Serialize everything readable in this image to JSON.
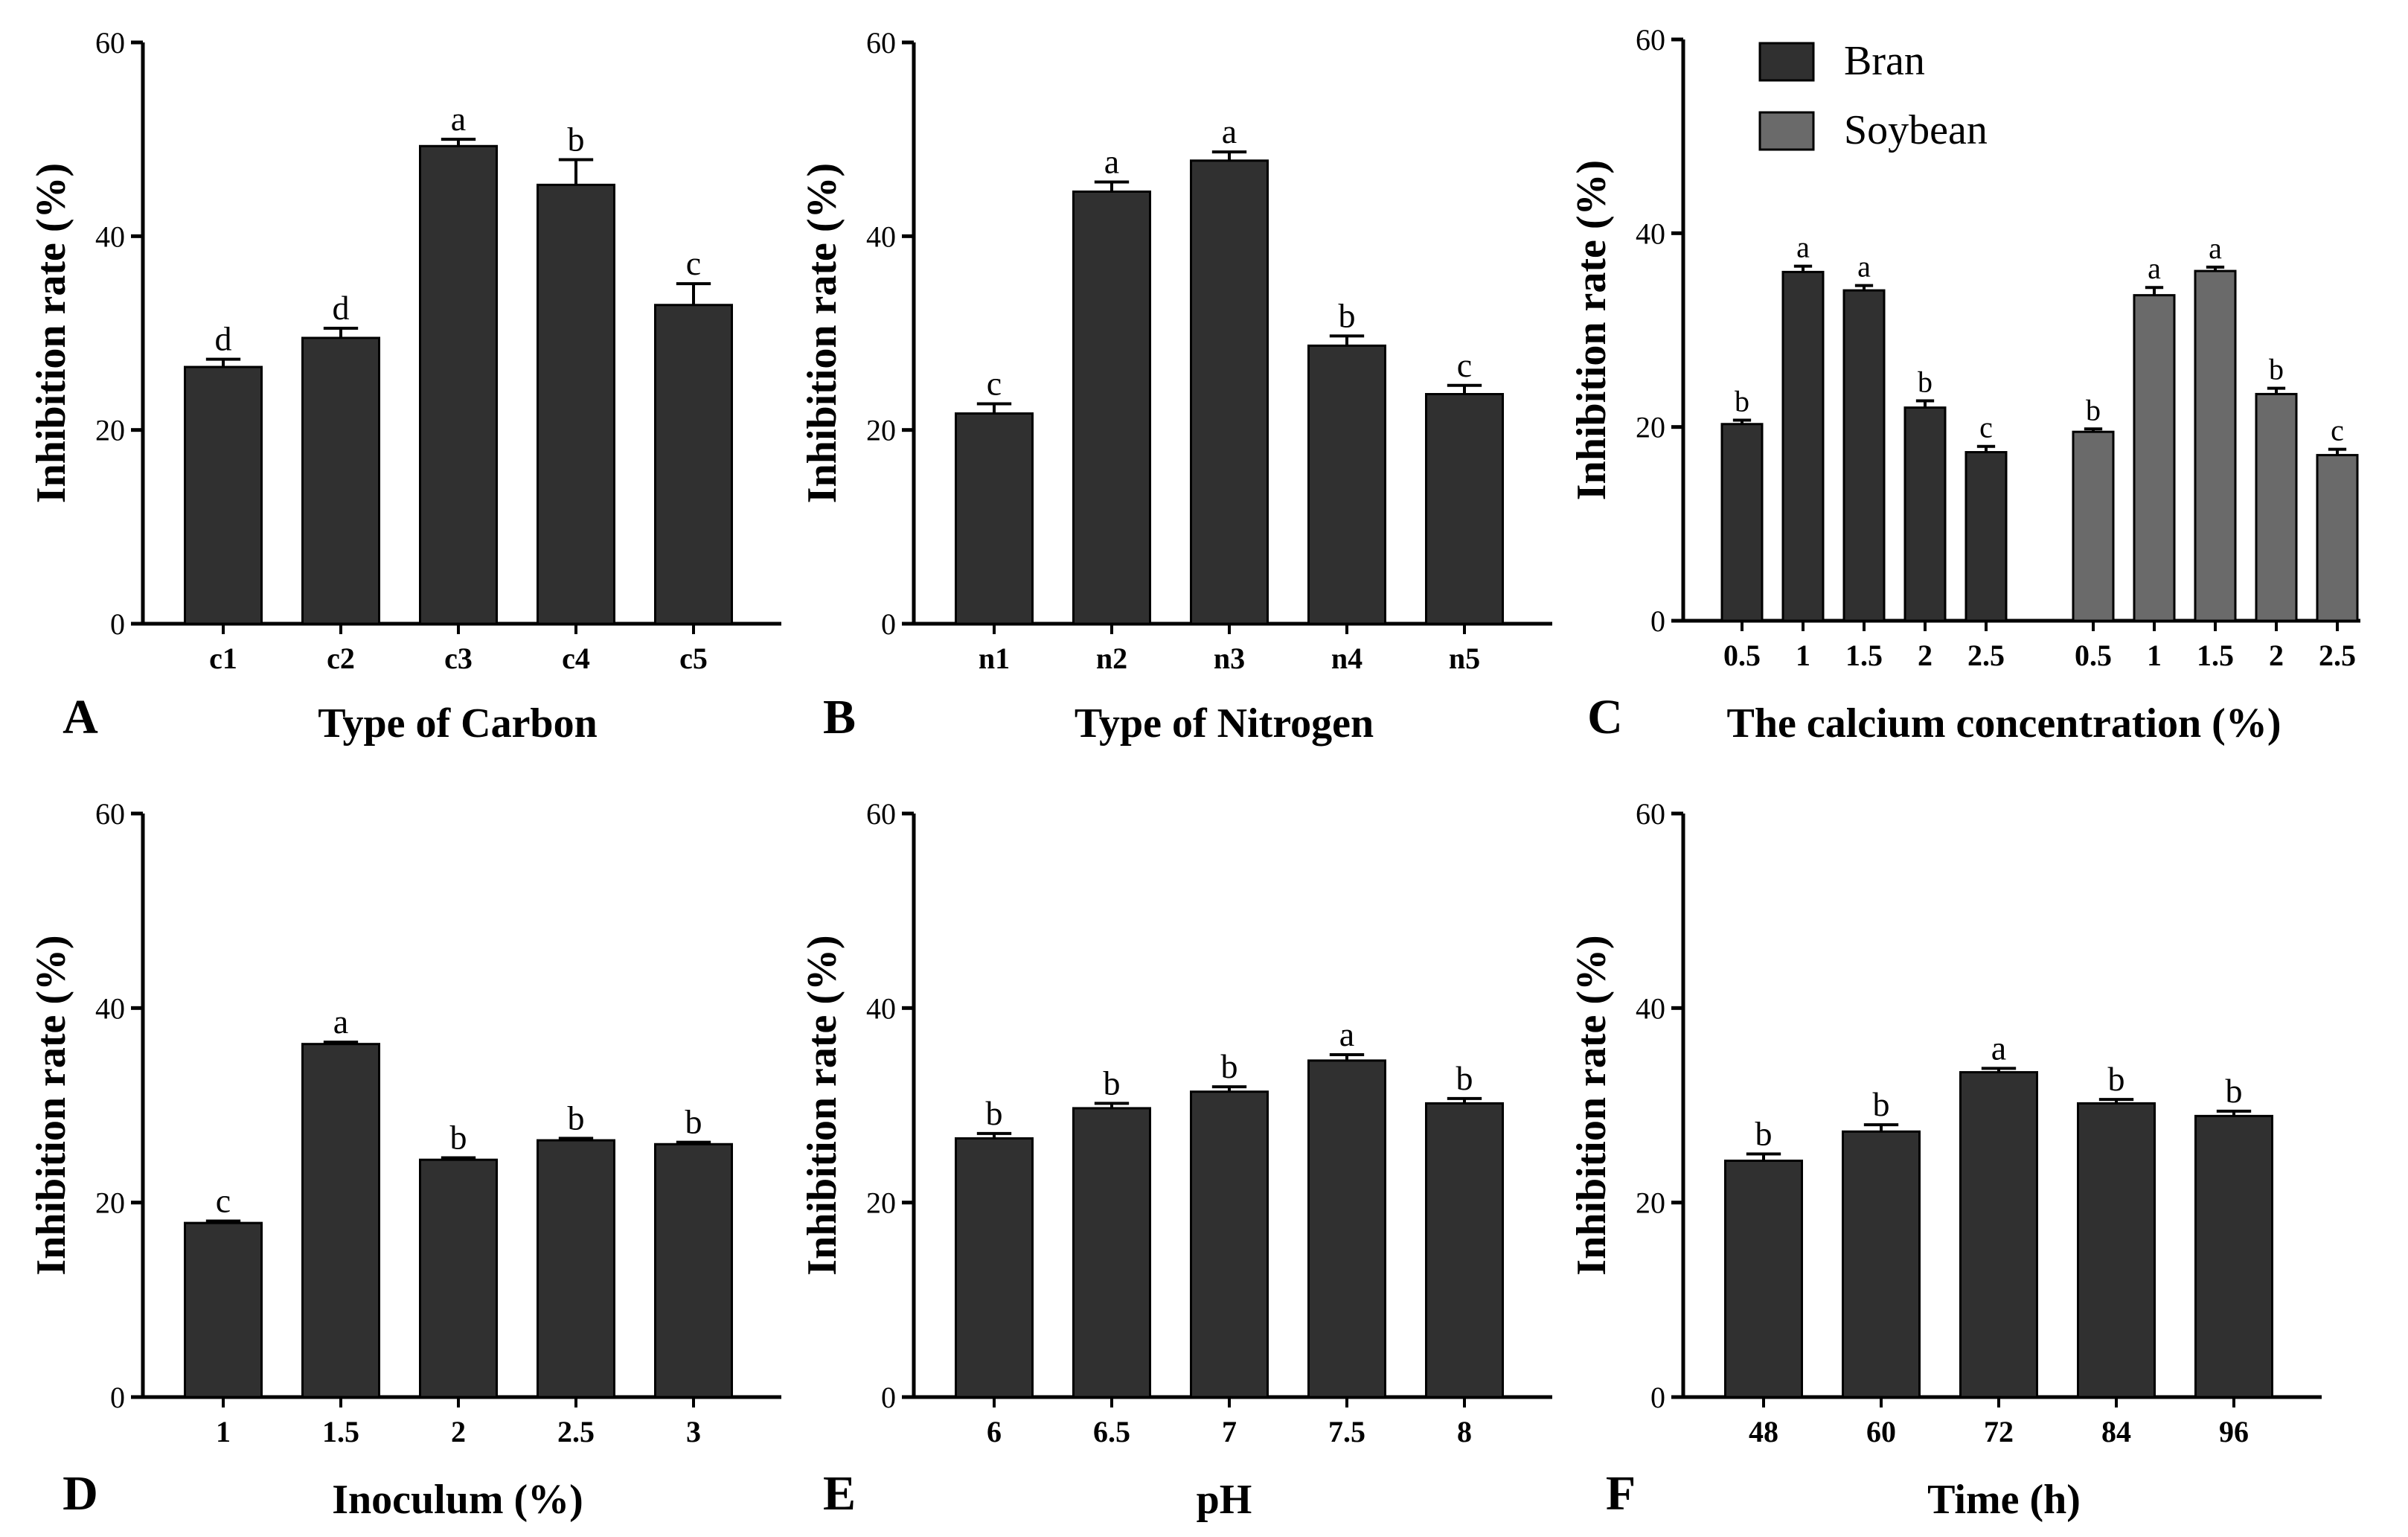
{
  "colors": {
    "bar_dark": "#303030",
    "bar_gray": "#6a6a6a",
    "ink": "#000000"
  },
  "chart_data": [
    {
      "type": "bar",
      "panel_letter": "A",
      "title": "",
      "xlabel": "Type of Carbon",
      "ylabel": "Inhibition rate (%)",
      "ylim": [
        0,
        60
      ],
      "yticks": [
        "0",
        "20",
        "40",
        "60"
      ],
      "categories": [
        "c1",
        "c2",
        "c3",
        "c4",
        "c5"
      ],
      "series": [
        {
          "name": "",
          "values": [
            26.5,
            29.5,
            49.3,
            45.3,
            32.9
          ],
          "errors": [
            0.8,
            1.0,
            0.7,
            2.6,
            2.2
          ],
          "letters": [
            "d",
            "d",
            "a",
            "b",
            "c"
          ]
        }
      ]
    },
    {
      "type": "bar",
      "panel_letter": "B",
      "title": "",
      "xlabel": "Type of Nitrogen",
      "ylabel": "Inhibition rate (%)",
      "ylim": [
        0,
        60
      ],
      "yticks": [
        "0",
        "20",
        "40",
        "60"
      ],
      "categories": [
        "n1",
        "n2",
        "n3",
        "n4",
        "n5"
      ],
      "series": [
        {
          "name": "",
          "values": [
            21.7,
            44.6,
            47.8,
            28.7,
            23.7
          ],
          "errors": [
            1.0,
            1.0,
            0.9,
            1.0,
            0.9
          ],
          "letters": [
            "c",
            "a",
            "a",
            "b",
            "c"
          ]
        }
      ]
    },
    {
      "type": "bar",
      "panel_letter": "C",
      "title": "",
      "xlabel": "The calcium concentration (%)",
      "ylabel": "Inhibition rate (%)",
      "ylim": [
        0,
        60
      ],
      "yticks": [
        "0",
        "20",
        "40",
        "60"
      ],
      "legend_position": "top-right",
      "categories": [
        "0.5",
        "1",
        "1.5",
        "2",
        "2.5"
      ],
      "series": [
        {
          "name": "Bran",
          "values": [
            20.3,
            36.0,
            34.1,
            22.0,
            17.4
          ],
          "errors": [
            0.4,
            0.6,
            0.5,
            0.7,
            0.6
          ],
          "letters": [
            "b",
            "a",
            "a",
            "b",
            "c"
          ]
        },
        {
          "name": "Soybean",
          "values": [
            19.5,
            33.6,
            36.1,
            23.4,
            17.1
          ],
          "errors": [
            0.3,
            0.8,
            0.4,
            0.6,
            0.6
          ],
          "letters": [
            "b",
            "a",
            "a",
            "b",
            "c"
          ]
        }
      ]
    },
    {
      "type": "bar",
      "panel_letter": "D",
      "title": "",
      "xlabel": "Inoculum (%)",
      "ylabel": "Inhibition rate (%)",
      "ylim": [
        0,
        60
      ],
      "yticks": [
        "0",
        "20",
        "40",
        "60"
      ],
      "categories": [
        "1",
        "1.5",
        "2",
        "2.5",
        "3"
      ],
      "series": [
        {
          "name": "",
          "values": [
            17.9,
            36.3,
            24.4,
            26.4,
            26.0
          ],
          "errors": [
            0.2,
            0.2,
            0.2,
            0.2,
            0.2
          ],
          "letters": [
            "c",
            "a",
            "b",
            "b",
            "b"
          ]
        }
      ]
    },
    {
      "type": "bar",
      "panel_letter": "E",
      "title": "",
      "xlabel": "pH",
      "ylabel": "Inhibition rate (%)",
      "ylim": [
        0,
        60
      ],
      "yticks": [
        "0",
        "20",
        "40",
        "60"
      ],
      "categories": [
        "6",
        "6.5",
        "7",
        "7.5",
        "8"
      ],
      "series": [
        {
          "name": "",
          "values": [
            26.6,
            29.7,
            31.4,
            34.6,
            30.2
          ],
          "errors": [
            0.5,
            0.5,
            0.5,
            0.6,
            0.5
          ],
          "letters": [
            "b",
            "b",
            "b",
            "a",
            "b"
          ]
        }
      ]
    },
    {
      "type": "bar",
      "panel_letter": "F",
      "title": "",
      "xlabel": "Time (h)",
      "ylabel": "Inhibition rate (%)",
      "ylim": [
        0,
        60
      ],
      "yticks": [
        "0",
        "20",
        "40",
        "60"
      ],
      "categories": [
        "48",
        "60",
        "72",
        "84",
        "96"
      ],
      "series": [
        {
          "name": "",
          "values": [
            24.3,
            27.3,
            33.4,
            30.2,
            28.9
          ],
          "errors": [
            0.7,
            0.7,
            0.4,
            0.4,
            0.5
          ],
          "letters": [
            "b",
            "b",
            "a",
            "b",
            "b"
          ]
        }
      ]
    }
  ]
}
